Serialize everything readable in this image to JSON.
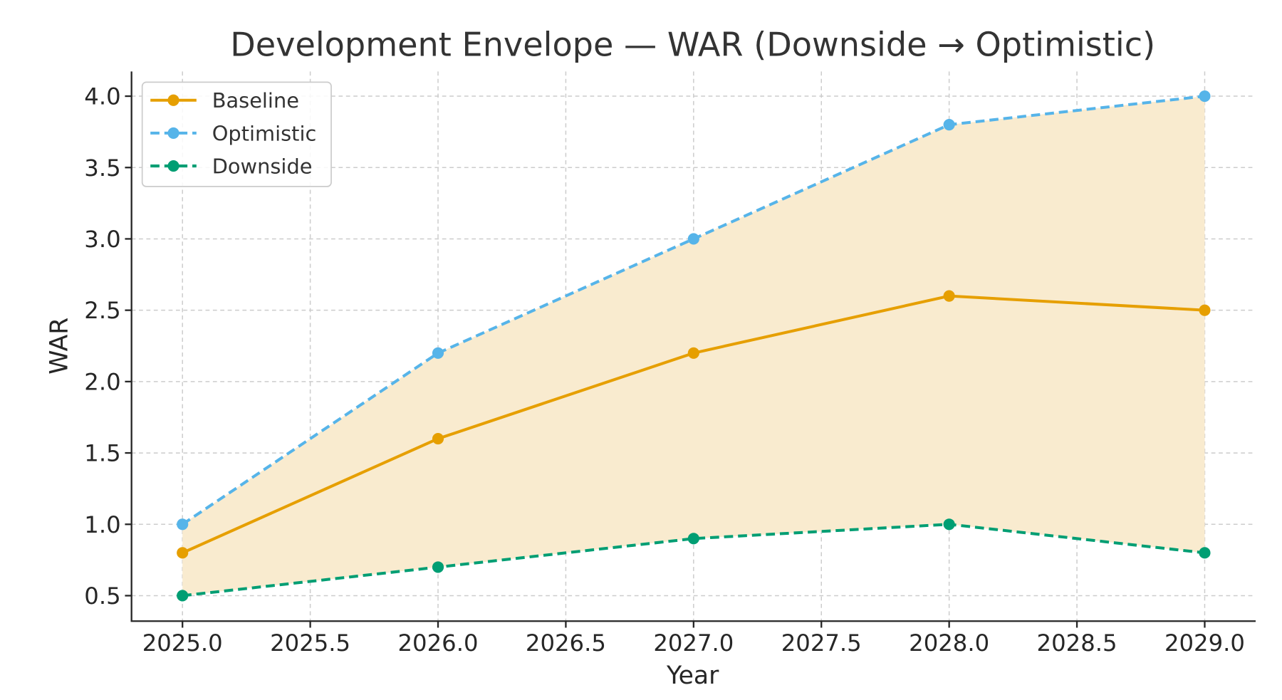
{
  "chart_data": {
    "type": "line",
    "title": "Development Envelope — WAR (Downside → Optimistic)",
    "xlabel": "Year",
    "ylabel": "WAR",
    "x": [
      2025,
      2026,
      2027,
      2028,
      2029
    ],
    "xlim": [
      2024.8,
      2029.2
    ],
    "ylim": [
      0.4,
      4.18
    ],
    "xticks": [
      "2025.0",
      "2025.5",
      "2026.0",
      "2026.5",
      "2027.0",
      "2027.5",
      "2028.0",
      "2028.5",
      "2029.0"
    ],
    "yticks": [
      "0.5",
      "1.0",
      "1.5",
      "2.0",
      "2.5",
      "3.0",
      "3.5",
      "4.0"
    ],
    "grid": true,
    "legend_position": "top-left",
    "fill_between": {
      "lower": "Downside",
      "upper": "Optimistic",
      "color": "#f9ebcf"
    },
    "series": [
      {
        "name": "Baseline",
        "values": [
          0.8,
          1.6,
          2.2,
          2.6,
          2.5
        ],
        "color": "#e69f00",
        "style": "solid"
      },
      {
        "name": "Optimistic",
        "values": [
          1.0,
          2.2,
          3.0,
          3.8,
          4.0
        ],
        "color": "#56b4e9",
        "style": "dashed"
      },
      {
        "name": "Downside",
        "values": [
          0.5,
          0.7,
          0.9,
          1.0,
          0.8
        ],
        "color": "#009e73",
        "style": "dashed"
      }
    ]
  }
}
